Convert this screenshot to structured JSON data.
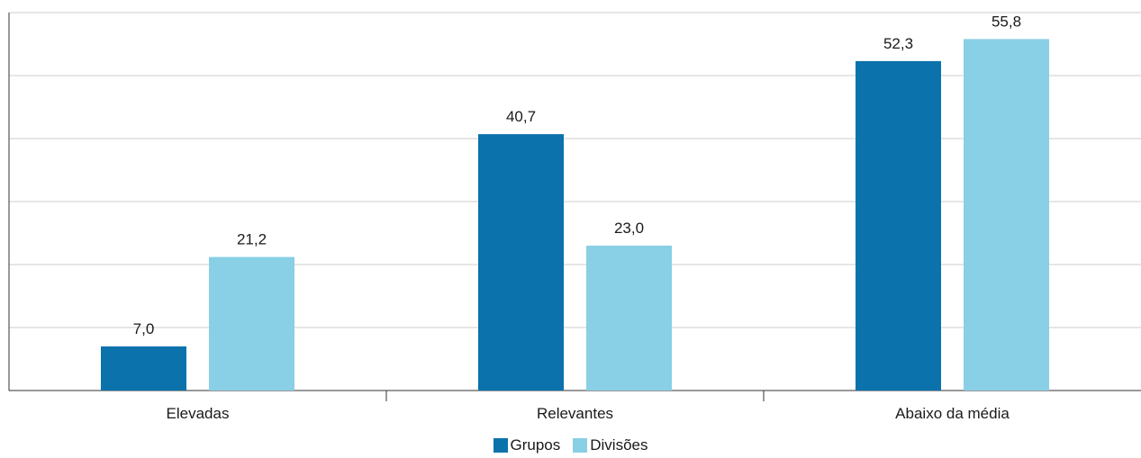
{
  "chart_data": {
    "type": "bar",
    "categories": [
      "Elevadas",
      "Relevantes",
      "Abaixo da média"
    ],
    "series": [
      {
        "name": "Grupos",
        "values": [
          7.0,
          40.7,
          52.3
        ],
        "labels": [
          "7,0",
          "40,7",
          "52,3"
        ],
        "color": "#0b72ac"
      },
      {
        "name": "Divisões",
        "values": [
          21.2,
          23.0,
          55.8
        ],
        "labels": [
          "21,2",
          "23,0",
          "55,8"
        ],
        "color": "#89cfe5"
      }
    ],
    "ylim": [
      0,
      60
    ],
    "grid": true,
    "legend_position": "bottom-center",
    "title": "",
    "xlabel": "",
    "ylabel": ""
  }
}
